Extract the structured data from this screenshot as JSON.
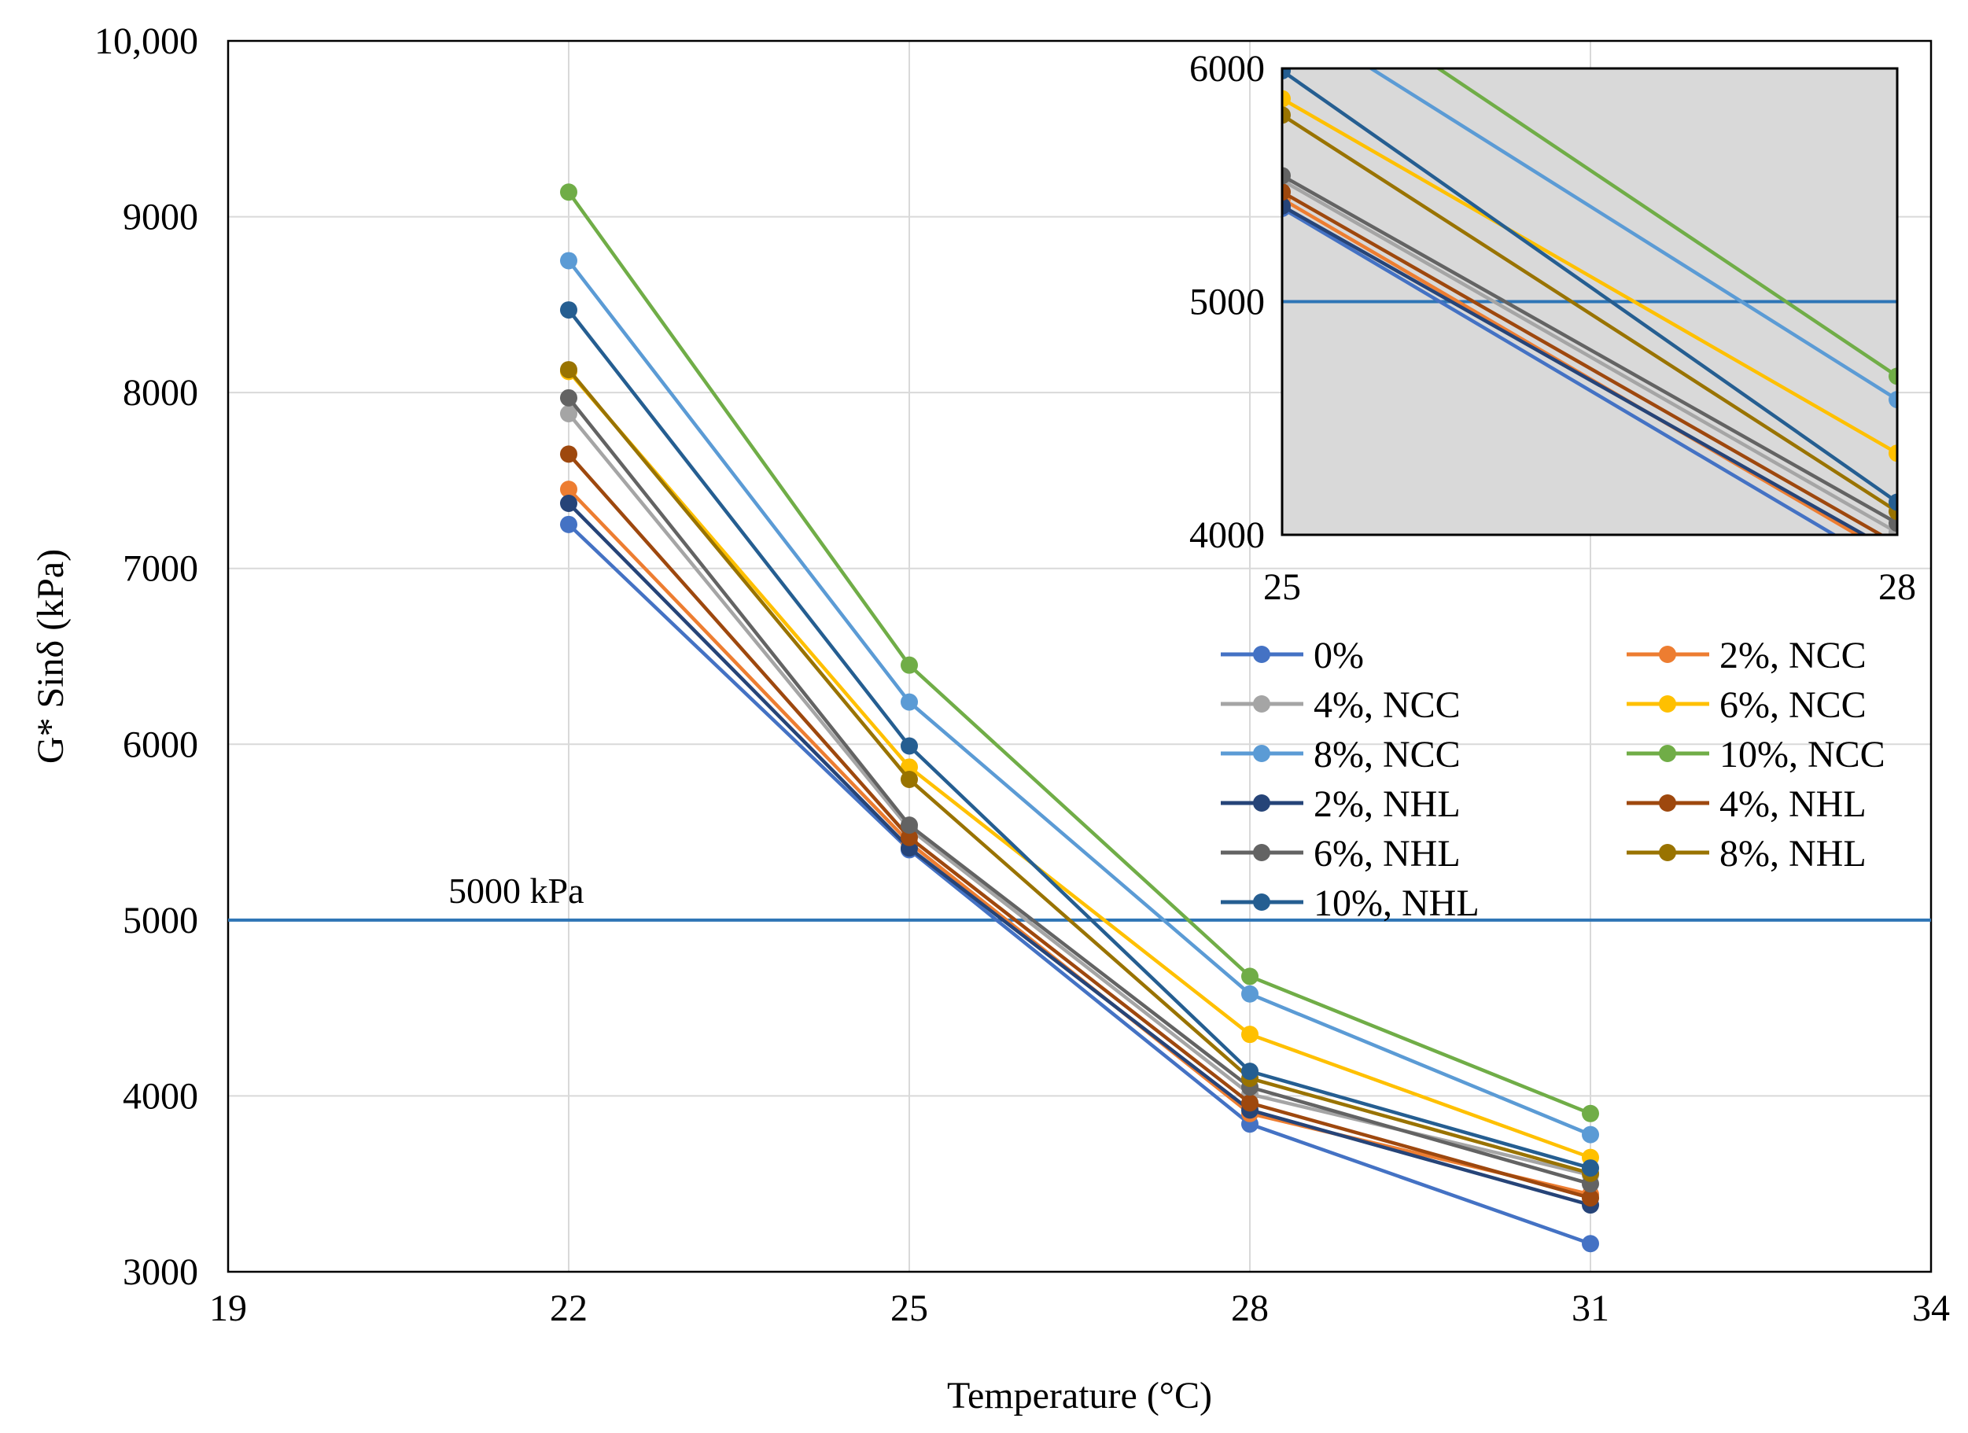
{
  "chart_data": [
    {
      "type": "line",
      "title": "",
      "xlabel": "Temperature (°C)",
      "ylabel": "G* Sinδ (kPa)",
      "xlim": [
        19,
        34
      ],
      "ylim": [
        3000,
        10000
      ],
      "x_ticks": [
        19,
        22,
        25,
        28,
        31,
        34
      ],
      "y_ticks": [
        3000,
        4000,
        5000,
        6000,
        7000,
        8000,
        9000,
        10000
      ],
      "x_tick_labels": [
        "19",
        "22",
        "25",
        "28",
        "31",
        "34"
      ],
      "y_tick_labels": [
        "3000",
        "4000",
        "5000",
        "6000",
        "7000",
        "8000",
        "9000",
        "10,000"
      ],
      "grid": true,
      "x": [
        22,
        25,
        28,
        31
      ],
      "reference_line": {
        "y": 5000,
        "label": "5000 kPa",
        "color": "#2E75B6"
      },
      "series": [
        {
          "name": "0%",
          "color": "#4472C4",
          "values": [
            7250,
            5400,
            3840,
            3160
          ]
        },
        {
          "name": "2%, NCC",
          "color": "#ED7D31",
          "values": [
            7450,
            5440,
            3900,
            3440
          ]
        },
        {
          "name": "4%, NCC",
          "color": "#A5A5A5",
          "values": [
            7880,
            5520,
            4010,
            3550
          ]
        },
        {
          "name": "6%, NCC",
          "color": "#FFC000",
          "values": [
            8120,
            5870,
            4350,
            3650
          ]
        },
        {
          "name": "8%, NCC",
          "color": "#5B9BD5",
          "values": [
            8750,
            6240,
            4580,
            3780
          ]
        },
        {
          "name": "10%, NCC",
          "color": "#70AD47",
          "values": [
            9140,
            6450,
            4680,
            3900
          ]
        },
        {
          "name": "2%, NHL",
          "color": "#264478",
          "values": [
            7370,
            5410,
            3920,
            3380
          ]
        },
        {
          "name": "4%, NHL",
          "color": "#9E480E",
          "values": [
            7650,
            5470,
            3960,
            3420
          ]
        },
        {
          "name": "6%, NHL",
          "color": "#636363",
          "values": [
            7970,
            5540,
            4050,
            3500
          ]
        },
        {
          "name": "8%, NHL",
          "color": "#997300",
          "values": [
            8130,
            5800,
            4100,
            3560
          ]
        },
        {
          "name": "10%, NHL",
          "color": "#255E91",
          "values": [
            8470,
            5990,
            4140,
            3590
          ]
        }
      ],
      "legend": {
        "position": "right-middle",
        "columns": 2
      }
    },
    {
      "type": "line",
      "title": "",
      "role": "inset",
      "xlim": [
        25,
        28
      ],
      "ylim": [
        4000,
        6000
      ],
      "x_ticks": [
        25,
        28
      ],
      "y_ticks": [
        4000,
        5000,
        6000
      ],
      "x_tick_labels": [
        "25",
        "28"
      ],
      "y_tick_labels": [
        "4000",
        "5000",
        "6000"
      ],
      "background": "#D9D9D9",
      "reference_line": {
        "y": 5000
      }
    }
  ]
}
